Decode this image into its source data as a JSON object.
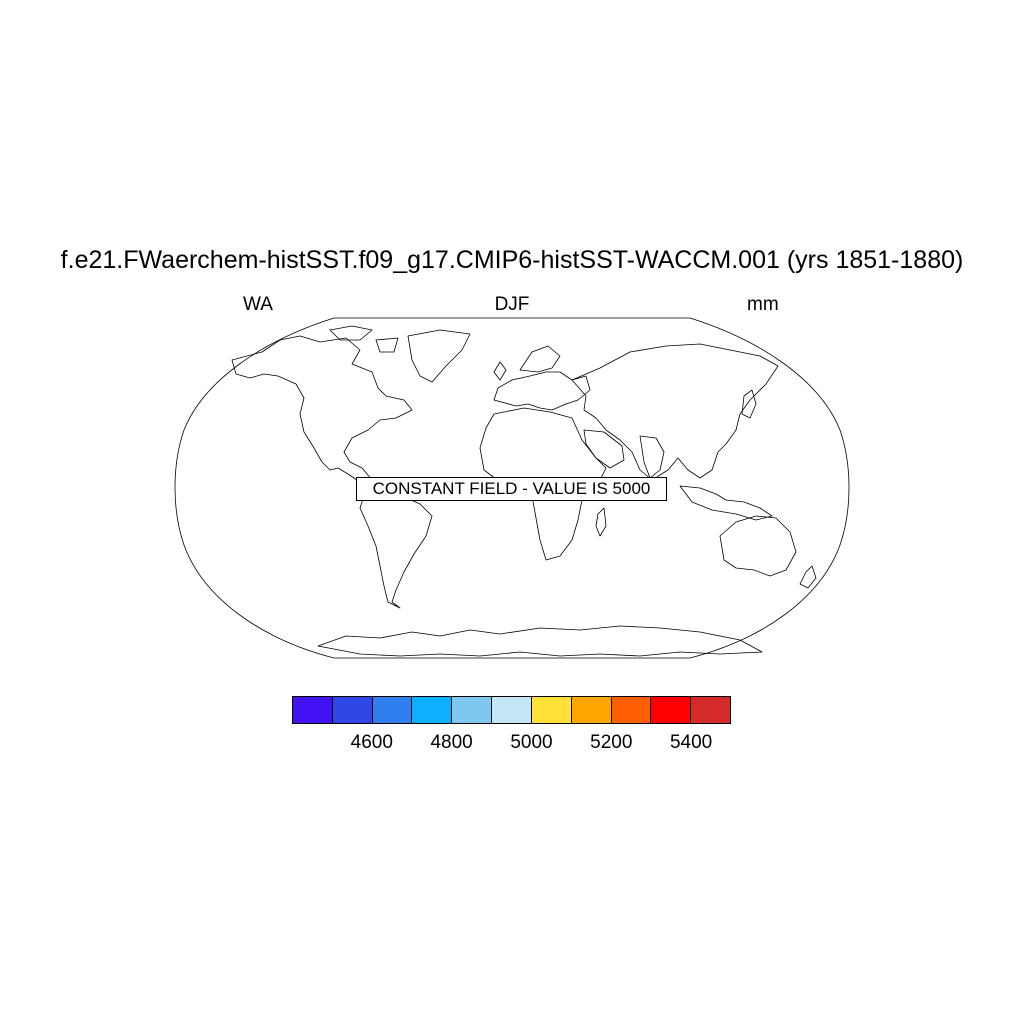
{
  "header": {
    "title": "f.e21.FWaerchem-histSST.f09_g17.CMIP6-histSST-WACCM.001 (yrs 1851-1880)",
    "left_label": "WA",
    "center_label": "DJF",
    "right_label": "mm"
  },
  "map": {
    "projection": "robinson",
    "notice": "CONSTANT FIELD - VALUE IS 5000"
  },
  "colorbar": {
    "colors": [
      "#4212f5",
      "#2f47e6",
      "#2f7fef",
      "#0db0ff",
      "#7ec8ef",
      "#c6e6f8",
      "#ffe13a",
      "#ffa600",
      "#ff5f00",
      "#ff0000",
      "#d42a2a"
    ],
    "labels": [
      "4600",
      "4800",
      "5000",
      "5200",
      "5400"
    ]
  }
}
